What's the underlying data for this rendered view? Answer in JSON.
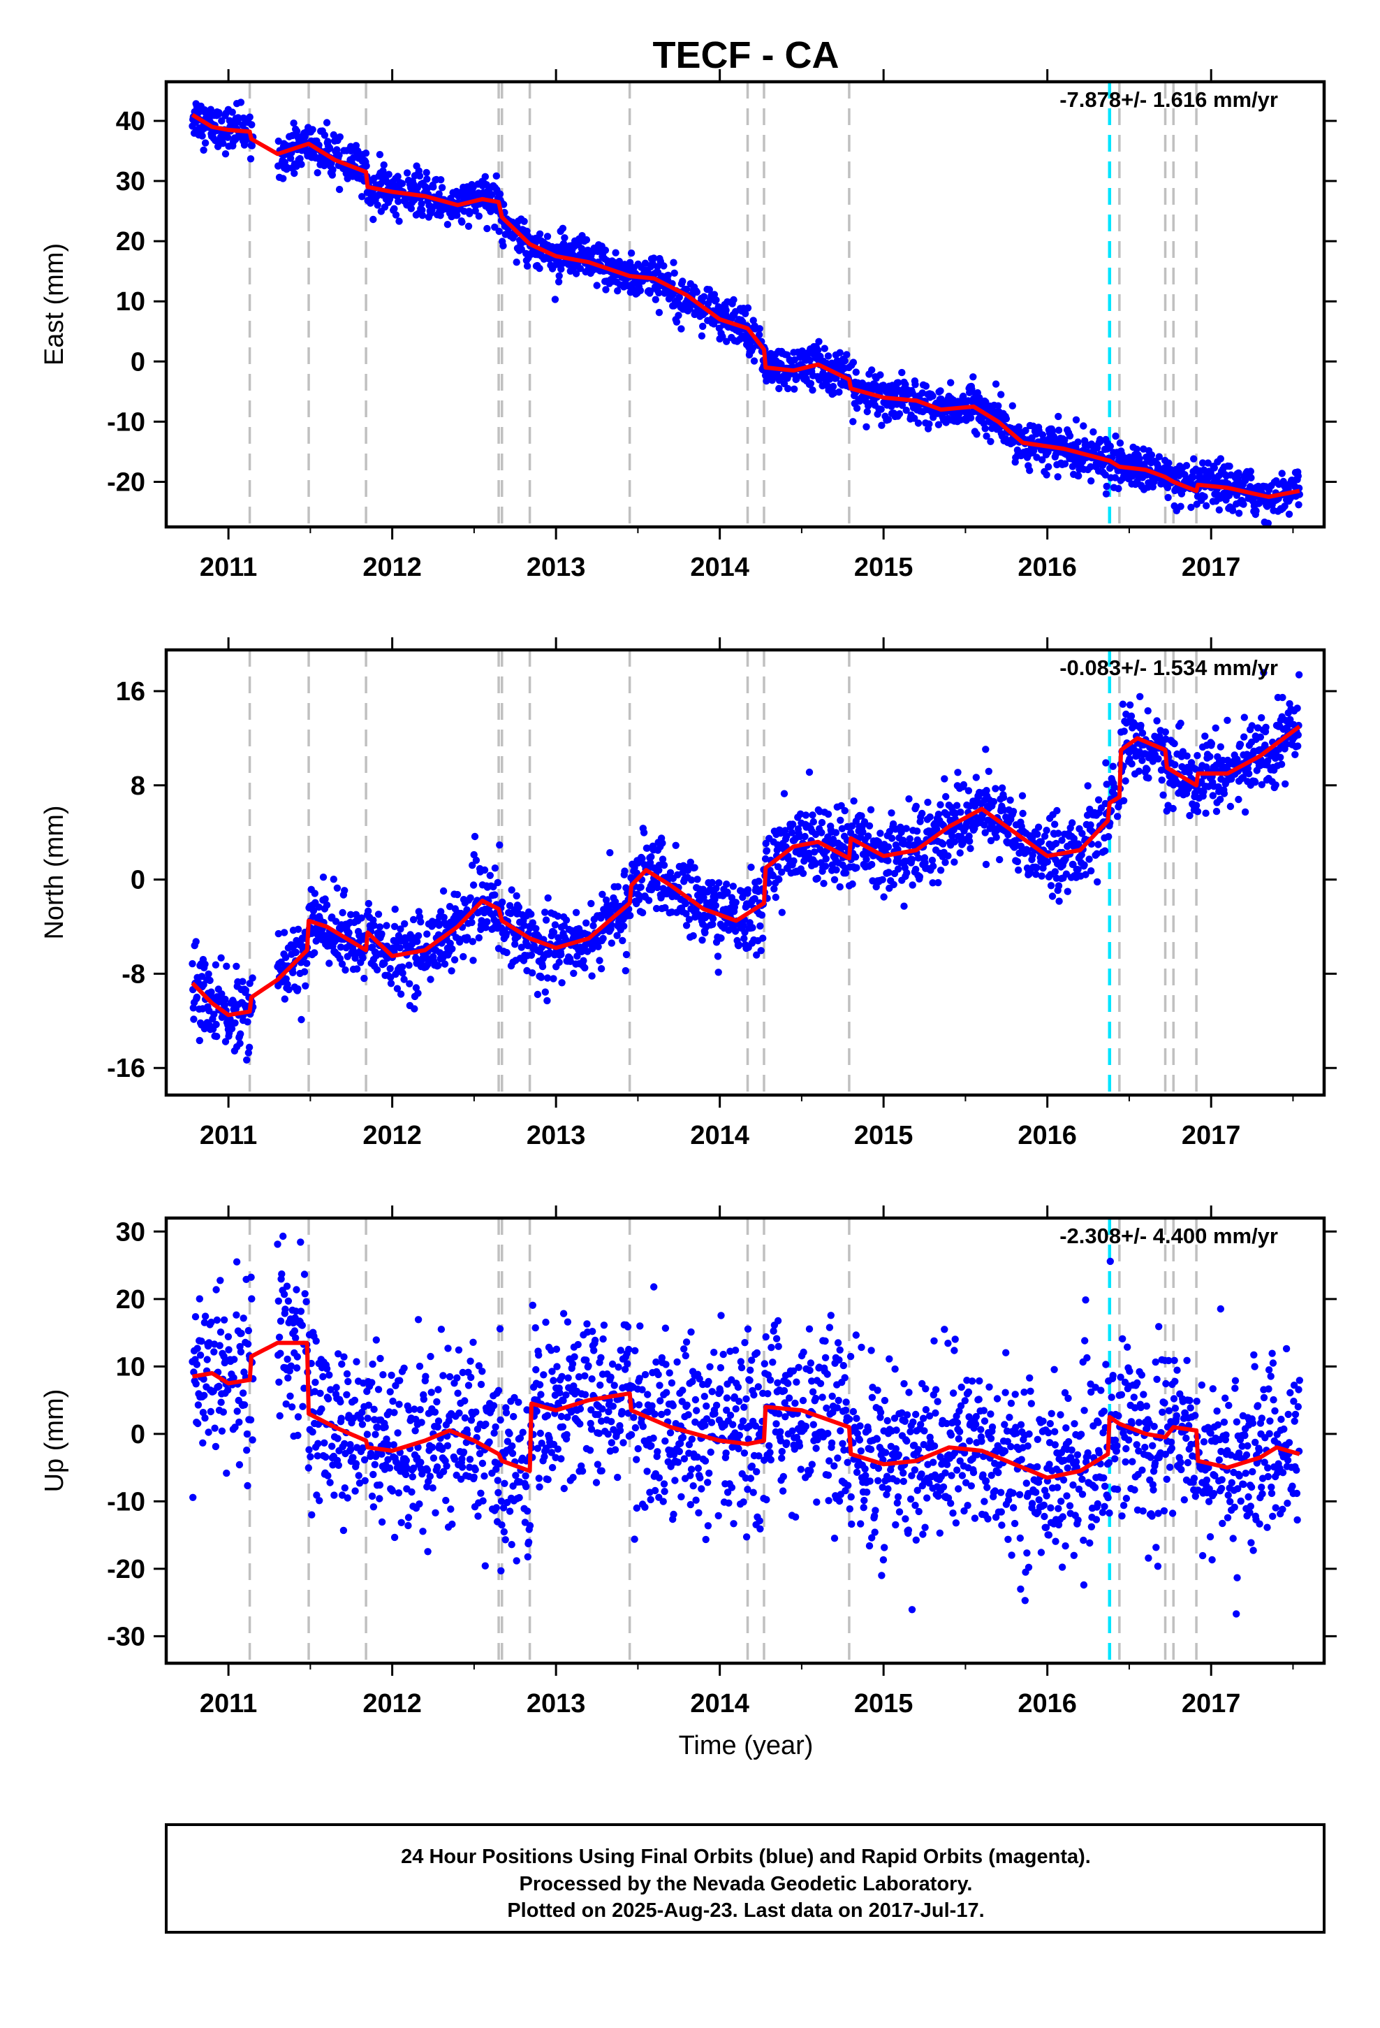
{
  "title": "TECF - CA",
  "x_axis_label": "Time (year)",
  "footer": {
    "lines": [
      "24 Hour Positions Using Final Orbits (blue) and Rapid Orbits (magenta).",
      "Processed by the Nevada Geodetic Laboratory.",
      "Plotted on 2025-Aug-23. Last data on 2017-Jul-17."
    ]
  },
  "colors": {
    "points": "#0000ff",
    "model": "#ff0000",
    "equipment_change": "#c0c0c0",
    "earthquake": "#00e5ff"
  },
  "chart_data": [
    {
      "type": "scatter",
      "panel": "east",
      "ylabel": "East (mm)",
      "rate": "-7.878+/- 1.616 mm/yr",
      "xlim": [
        2010.62,
        2017.69
      ],
      "ylim": [
        -27.5,
        46.5
      ],
      "xticks": [
        2011,
        2012,
        2013,
        2014,
        2015,
        2016,
        2017
      ],
      "yticks": [
        -20,
        -10,
        0,
        10,
        20,
        30,
        40
      ],
      "data_start": 2010.78,
      "data_end": 2017.54,
      "equipment_changes": [
        2011.13,
        2011.49,
        2011.84,
        2012.65,
        2012.67,
        2012.84,
        2013.45,
        2014.17,
        2014.27,
        2014.79,
        2016.44,
        2016.72,
        2016.77,
        2016.91
      ],
      "earthquake": 2016.38,
      "model": [
        [
          2010.78,
          41
        ],
        [
          2010.9,
          39
        ],
        [
          2011.0,
          38.5
        ],
        [
          2011.13,
          38.2
        ],
        [
          2011.14,
          37
        ],
        [
          2011.3,
          34.5
        ],
        [
          2011.49,
          36.2
        ],
        [
          2011.65,
          33.5
        ],
        [
          2011.84,
          31.5
        ],
        [
          2011.85,
          29
        ],
        [
          2012.0,
          28.2
        ],
        [
          2012.2,
          27.5
        ],
        [
          2012.4,
          26
        ],
        [
          2012.55,
          27
        ],
        [
          2012.65,
          26.5
        ],
        [
          2012.67,
          24
        ],
        [
          2012.84,
          19.5
        ],
        [
          2013.0,
          17.5
        ],
        [
          2013.2,
          16.5
        ],
        [
          2013.45,
          14.2
        ],
        [
          2013.6,
          13.8
        ],
        [
          2013.8,
          11
        ],
        [
          2014.0,
          7
        ],
        [
          2014.17,
          5.5
        ],
        [
          2014.27,
          2
        ],
        [
          2014.28,
          -1
        ],
        [
          2014.45,
          -1.5
        ],
        [
          2014.6,
          -0.5
        ],
        [
          2014.79,
          -3
        ],
        [
          2014.8,
          -4.5
        ],
        [
          2015.0,
          -6
        ],
        [
          2015.2,
          -6.5
        ],
        [
          2015.35,
          -8
        ],
        [
          2015.55,
          -7.5
        ],
        [
          2015.7,
          -10
        ],
        [
          2015.85,
          -13.5
        ],
        [
          2016.1,
          -14.5
        ],
        [
          2016.38,
          -16.5
        ],
        [
          2016.44,
          -17.5
        ],
        [
          2016.6,
          -18
        ],
        [
          2016.72,
          -19.2
        ],
        [
          2016.77,
          -20
        ],
        [
          2016.91,
          -21.5
        ],
        [
          2016.92,
          -20.5
        ],
        [
          2017.1,
          -21
        ],
        [
          2017.35,
          -22.5
        ],
        [
          2017.54,
          -21.5
        ]
      ],
      "noise": 1.8,
      "x_gaps": [
        [
          2011.15,
          2011.3
        ]
      ]
    },
    {
      "type": "scatter",
      "panel": "north",
      "ylabel": "North (mm)",
      "rate": "-0.083+/- 1.534 mm/yr",
      "xlim": [
        2010.62,
        2017.69
      ],
      "ylim": [
        -18.3,
        19.5
      ],
      "xticks": [
        2011,
        2012,
        2013,
        2014,
        2015,
        2016,
        2017
      ],
      "yticks": [
        -16,
        -8,
        0,
        8,
        16
      ],
      "data_start": 2010.78,
      "data_end": 2017.54,
      "equipment_changes": [
        2011.13,
        2011.49,
        2011.84,
        2012.65,
        2012.67,
        2012.84,
        2013.45,
        2014.17,
        2014.27,
        2014.79,
        2016.44,
        2016.72,
        2016.77,
        2016.91
      ],
      "earthquake": 2016.38,
      "model": [
        [
          2010.78,
          -8.8
        ],
        [
          2010.9,
          -10.5
        ],
        [
          2011.0,
          -11.5
        ],
        [
          2011.13,
          -11.2
        ],
        [
          2011.14,
          -10
        ],
        [
          2011.3,
          -8.5
        ],
        [
          2011.48,
          -6
        ],
        [
          2011.49,
          -3.5
        ],
        [
          2011.6,
          -4
        ],
        [
          2011.84,
          -6
        ],
        [
          2011.85,
          -4.5
        ],
        [
          2012.0,
          -6.5
        ],
        [
          2012.2,
          -6
        ],
        [
          2012.4,
          -4
        ],
        [
          2012.55,
          -1.8
        ],
        [
          2012.65,
          -2.5
        ],
        [
          2012.67,
          -3.5
        ],
        [
          2012.84,
          -5
        ],
        [
          2013.0,
          -5.8
        ],
        [
          2013.2,
          -5
        ],
        [
          2013.45,
          -2
        ],
        [
          2013.46,
          -0.5
        ],
        [
          2013.55,
          0.8
        ],
        [
          2013.7,
          -0.5
        ],
        [
          2013.9,
          -2.5
        ],
        [
          2014.1,
          -3.5
        ],
        [
          2014.27,
          -2
        ],
        [
          2014.28,
          1
        ],
        [
          2014.45,
          2.8
        ],
        [
          2014.6,
          3.2
        ],
        [
          2014.79,
          1.8
        ],
        [
          2014.8,
          3.5
        ],
        [
          2015.0,
          2
        ],
        [
          2015.2,
          2.5
        ],
        [
          2015.4,
          4.5
        ],
        [
          2015.6,
          6
        ],
        [
          2015.8,
          4
        ],
        [
          2016.0,
          2
        ],
        [
          2016.2,
          2.5
        ],
        [
          2016.37,
          5
        ],
        [
          2016.38,
          6.5
        ],
        [
          2016.44,
          7
        ],
        [
          2016.45,
          11
        ],
        [
          2016.55,
          12
        ],
        [
          2016.72,
          11
        ],
        [
          2016.73,
          9.5
        ],
        [
          2016.91,
          8
        ],
        [
          2016.92,
          9
        ],
        [
          2017.1,
          9
        ],
        [
          2017.3,
          10.5
        ],
        [
          2017.54,
          13
        ]
      ],
      "noise": 1.6,
      "x_gaps": [
        [
          2011.15,
          2011.3
        ]
      ]
    },
    {
      "type": "scatter",
      "panel": "up",
      "ylabel": "Up (mm)",
      "rate": "-2.308+/- 4.400 mm/yr",
      "xlim": [
        2010.62,
        2017.69
      ],
      "ylim": [
        -34,
        32
      ],
      "xticks": [
        2011,
        2012,
        2013,
        2014,
        2015,
        2016,
        2017
      ],
      "yticks": [
        -30,
        -20,
        -10,
        0,
        10,
        20,
        30
      ],
      "data_start": 2010.78,
      "data_end": 2017.54,
      "equipment_changes": [
        2011.13,
        2011.49,
        2011.84,
        2012.65,
        2012.67,
        2012.84,
        2013.45,
        2014.17,
        2014.27,
        2014.79,
        2016.44,
        2016.72,
        2016.77,
        2016.91
      ],
      "earthquake": 2016.38,
      "model": [
        [
          2010.78,
          8.5
        ],
        [
          2010.9,
          9
        ],
        [
          2011.0,
          7.5
        ],
        [
          2011.13,
          8
        ],
        [
          2011.14,
          11.5
        ],
        [
          2011.3,
          13.5
        ],
        [
          2011.48,
          13.5
        ],
        [
          2011.49,
          3
        ],
        [
          2011.65,
          1
        ],
        [
          2011.84,
          -1
        ],
        [
          2011.85,
          -2
        ],
        [
          2012.0,
          -2.5
        ],
        [
          2012.2,
          -1
        ],
        [
          2012.35,
          0.5
        ],
        [
          2012.5,
          -1
        ],
        [
          2012.65,
          -3
        ],
        [
          2012.67,
          -4
        ],
        [
          2012.84,
          -5.5
        ],
        [
          2012.85,
          4.5
        ],
        [
          2013.0,
          3.5
        ],
        [
          2013.2,
          5
        ],
        [
          2013.45,
          6
        ],
        [
          2013.46,
          3.5
        ],
        [
          2013.7,
          1
        ],
        [
          2014.0,
          -1
        ],
        [
          2014.17,
          -1.5
        ],
        [
          2014.27,
          -1
        ],
        [
          2014.28,
          4
        ],
        [
          2014.5,
          3.5
        ],
        [
          2014.79,
          1
        ],
        [
          2014.8,
          -3
        ],
        [
          2015.0,
          -4.5
        ],
        [
          2015.2,
          -4
        ],
        [
          2015.4,
          -2
        ],
        [
          2015.6,
          -2.5
        ],
        [
          2015.8,
          -4.5
        ],
        [
          2016.0,
          -6.5
        ],
        [
          2016.2,
          -5.5
        ],
        [
          2016.37,
          -3
        ],
        [
          2016.38,
          2.5
        ],
        [
          2016.44,
          1.5
        ],
        [
          2016.6,
          0
        ],
        [
          2016.72,
          -0.5
        ],
        [
          2016.77,
          1
        ],
        [
          2016.91,
          0.5
        ],
        [
          2016.92,
          -4
        ],
        [
          2017.1,
          -5
        ],
        [
          2017.3,
          -3.5
        ],
        [
          2017.4,
          -2
        ],
        [
          2017.54,
          -3
        ]
      ],
      "noise": 6.5,
      "x_gaps": [
        [
          2011.15,
          2011.3
        ]
      ]
    }
  ]
}
